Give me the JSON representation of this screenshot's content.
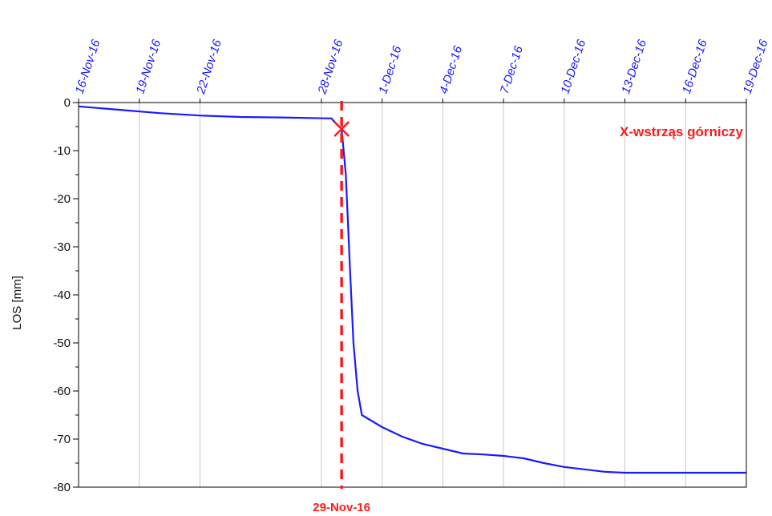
{
  "chart_data": {
    "type": "line",
    "xlabel": "",
    "ylabel": "LOS   [mm]",
    "xlim": [
      "2016-11-16",
      "2016-12-19"
    ],
    "ylim": [
      -80,
      0
    ],
    "x_ticks": [
      "16-Nov-16",
      "19-Nov-16",
      "22-Nov-16",
      "28-Nov-16",
      "1-Dec-16",
      "4-Dec-16",
      "7-Dec-16",
      "10-Dec-16",
      "13-Dec-16",
      "16-Dec-16",
      "19-Dec-16"
    ],
    "x_tick_dates": [
      "2016-11-16",
      "2016-11-19",
      "2016-11-22",
      "2016-11-28",
      "2016-12-01",
      "2016-12-04",
      "2016-12-07",
      "2016-12-10",
      "2016-12-13",
      "2016-12-16",
      "2016-12-19"
    ],
    "y_ticks": [
      0,
      -10,
      -20,
      -30,
      -40,
      -50,
      -60,
      -70,
      -80
    ],
    "grid": "vertical",
    "series": [
      {
        "color": "#1a1aff",
        "points": [
          {
            "x": "2016-11-16 00:00",
            "y": -0.8
          },
          {
            "x": "2016-11-18 00:00",
            "y": -1.5
          },
          {
            "x": "2016-11-20 00:00",
            "y": -2.2
          },
          {
            "x": "2016-11-22 00:00",
            "y": -2.7
          },
          {
            "x": "2016-11-24 00:00",
            "y": -3.0
          },
          {
            "x": "2016-11-26 00:00",
            "y": -3.1
          },
          {
            "x": "2016-11-28 12:00",
            "y": -3.3
          },
          {
            "x": "2016-11-28 18:00",
            "y": -4.5
          },
          {
            "x": "2016-11-29 00:00",
            "y": -5.5
          },
          {
            "x": "2016-11-29 05:00",
            "y": -15.0
          },
          {
            "x": "2016-11-29 10:00",
            "y": -35.0
          },
          {
            "x": "2016-11-29 14:00",
            "y": -50.0
          },
          {
            "x": "2016-11-29 19:00",
            "y": -60.0
          },
          {
            "x": "2016-11-30 00:00",
            "y": -65.0
          },
          {
            "x": "2016-12-01 00:00",
            "y": -67.5
          },
          {
            "x": "2016-12-02 00:00",
            "y": -69.5
          },
          {
            "x": "2016-12-03 00:00",
            "y": -71.0
          },
          {
            "x": "2016-12-04 00:00",
            "y": -72.0
          },
          {
            "x": "2016-12-05 00:00",
            "y": -73.0
          },
          {
            "x": "2016-12-06 00:00",
            "y": -73.2
          },
          {
            "x": "2016-12-07 00:00",
            "y": -73.5
          },
          {
            "x": "2016-12-08 00:00",
            "y": -74.0
          },
          {
            "x": "2016-12-09 00:00",
            "y": -75.0
          },
          {
            "x": "2016-12-10 00:00",
            "y": -75.8
          },
          {
            "x": "2016-12-11 00:00",
            "y": -76.3
          },
          {
            "x": "2016-12-12 00:00",
            "y": -76.8
          },
          {
            "x": "2016-12-13 00:00",
            "y": -77.0
          },
          {
            "x": "2016-12-19 00:00",
            "y": -77.0
          }
        ]
      }
    ],
    "event": {
      "date": "2016-11-29 00:00",
      "label": "29-Nov-16",
      "marker_y": -5.5,
      "color": "#ff1a1a"
    },
    "annotation": {
      "text": "X-wstrząs górniczy",
      "color": "#ff1a1a",
      "placement": "top-right"
    }
  }
}
